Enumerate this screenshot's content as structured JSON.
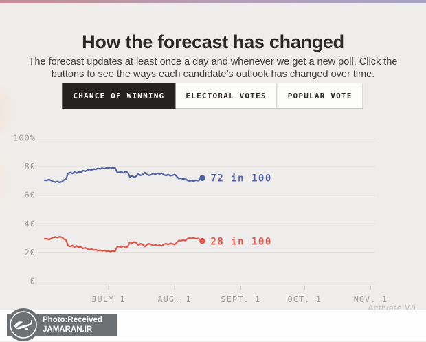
{
  "page": {
    "title": "How the forecast has changed",
    "subtitle": "The forecast updates at least once a day and whenever we get a new poll. Click the buttons to see the ways each candidate’s outlook has changed over time."
  },
  "tabs": [
    {
      "label": "CHANCE OF WINNING",
      "active": true
    },
    {
      "label": "ELECTORAL VOTES",
      "active": false
    },
    {
      "label": "POPULAR VOTE",
      "active": false
    }
  ],
  "chart_data": {
    "type": "line",
    "title": "",
    "x_start": "June 1",
    "x_unit": "day",
    "ylim": [
      0,
      100
    ],
    "grid": true,
    "yticks": [
      {
        "value": 100,
        "label": "100%"
      },
      {
        "value": 80,
        "label": "80"
      },
      {
        "value": 60,
        "label": "60"
      },
      {
        "value": 40,
        "label": "40"
      },
      {
        "value": 20,
        "label": "20"
      },
      {
        "value": 0,
        "label": "0"
      }
    ],
    "xticks": [
      {
        "day": 30,
        "label": "JULY 1"
      },
      {
        "day": 61,
        "label": "AUG. 1"
      },
      {
        "day": 92,
        "label": "SEPT. 1"
      },
      {
        "day": 122,
        "label": "OCT. 1"
      },
      {
        "day": 153,
        "label": "NOV. 1"
      }
    ],
    "series": [
      {
        "name": "chance-leading-candidate",
        "label": "72 in 100",
        "end_value": 72,
        "color": "#5163a5",
        "values": [
          70.5,
          70.4,
          71.0,
          70.3,
          69.6,
          69.2,
          69.7,
          69.0,
          69.4,
          70.6,
          71.2,
          75.3,
          75.8,
          75.1,
          76.2,
          75.4,
          76.4,
          76.0,
          77.2,
          76.7,
          77.4,
          78.1,
          77.5,
          78.3,
          78.0,
          78.8,
          78.3,
          79.0,
          78.5,
          79.2,
          79.0,
          79.5,
          78.8,
          79.3,
          76.2,
          75.8,
          76.5,
          75.6,
          76.6,
          75.9,
          72.8,
          73.5,
          72.6,
          73.2,
          74.9,
          73.8,
          74.4,
          75.8,
          74.5,
          73.9,
          74.3,
          75.2,
          74.6,
          75.3,
          74.8,
          75.4,
          74.2,
          73.8,
          74.4,
          73.6,
          73.9,
          74.5,
          73.1,
          71.6,
          71.9,
          71.2,
          71.8,
          70.4,
          69.9,
          70.3,
          69.8,
          70.5,
          70.2,
          71.0,
          72.0
        ]
      },
      {
        "name": "chance-trailing-candidate",
        "label": "28 in 100",
        "end_value": 28,
        "color": "#e0564a",
        "values": [
          29.5,
          29.6,
          29.0,
          29.7,
          30.4,
          30.8,
          30.3,
          31.0,
          30.6,
          29.4,
          28.8,
          24.7,
          24.2,
          24.9,
          23.8,
          24.6,
          23.6,
          24.0,
          22.8,
          23.3,
          22.6,
          21.9,
          22.5,
          21.7,
          22.0,
          21.2,
          21.7,
          21.0,
          21.5,
          20.8,
          21.0,
          20.5,
          21.2,
          20.7,
          23.8,
          24.2,
          23.5,
          24.4,
          23.4,
          24.1,
          27.2,
          26.5,
          27.4,
          26.8,
          25.1,
          26.2,
          25.6,
          24.2,
          25.5,
          26.1,
          25.7,
          24.8,
          25.4,
          24.7,
          25.2,
          24.6,
          25.8,
          26.2,
          25.6,
          26.4,
          26.1,
          25.5,
          26.9,
          28.4,
          28.1,
          28.8,
          28.2,
          29.6,
          30.1,
          29.7,
          30.2,
          29.5,
          29.8,
          29.0,
          28.0
        ]
      }
    ],
    "legend_position": "end-of-line"
  },
  "watermark": {
    "line1": "Photo:Received",
    "line2": "JAMARAN.IR",
    "logo": "jamaran-calligraphy",
    "bg_color": "#6d7174"
  },
  "system_overlay": {
    "partial_text": "Activate Wi"
  },
  "colors": {
    "page_background": "#efedeb",
    "strip_gradient_left": "#c58b95",
    "strip_gradient_right": "#a7a4c5",
    "grid": "#dcd9d6",
    "axis_label": "#a3a09c",
    "active_tab_bg": "#262222",
    "title_text": "#2b2826"
  }
}
